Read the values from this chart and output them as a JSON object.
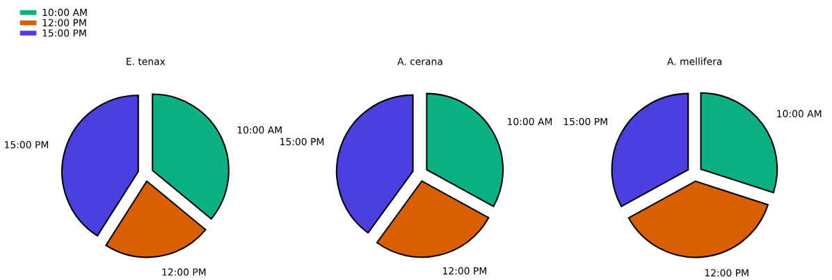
{
  "chart_data": [
    {
      "type": "pie",
      "title": "E. tenax",
      "categories": [
        "10:00 AM",
        "12:00 PM",
        "15:00 PM"
      ],
      "values": [
        36,
        23,
        41
      ],
      "colors": [
        "#0bb182",
        "#d95f02",
        "#4b3fe0"
      ],
      "legend": "top left"
    },
    {
      "type": "pie",
      "title": "A. cerana",
      "categories": [
        "10:00 AM",
        "12:00 PM",
        "15:00 PM"
      ],
      "values": [
        33,
        27,
        40
      ],
      "colors": [
        "#0bb182",
        "#d95f02",
        "#4b3fe0"
      ]
    },
    {
      "type": "pie",
      "title": "A. mellifera",
      "categories": [
        "10:00 AM",
        "12:00 PM",
        "15:00 PM"
      ],
      "values": [
        30,
        37,
        33
      ],
      "colors": [
        "#0bb182",
        "#d95f02",
        "#4b3fe0"
      ]
    }
  ]
}
